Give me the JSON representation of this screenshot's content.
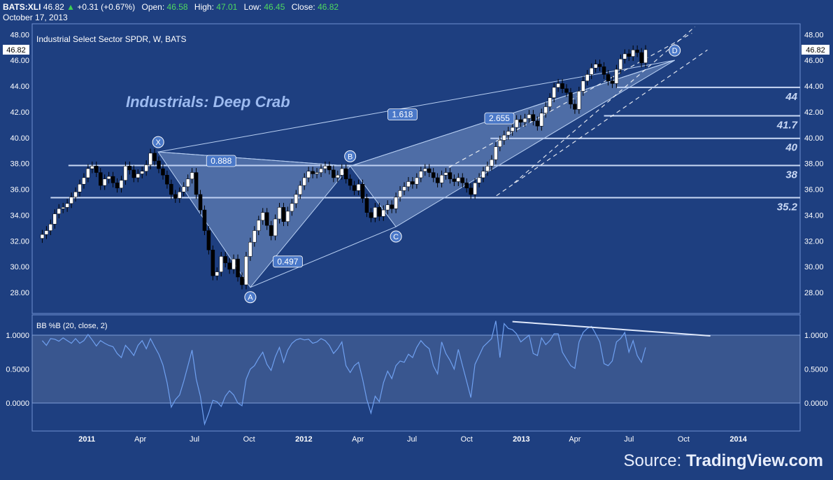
{
  "header": {
    "symbol": "BATS:XLI",
    "last": "46.82",
    "change": "+0.31 (+0.67%)",
    "open_label": "Open:",
    "open": "46.58",
    "high_label": "High:",
    "high": "47.01",
    "low_label": "Low:",
    "low": "46.45",
    "close_label": "Close:",
    "close": "46.82",
    "date": "October 17, 2013"
  },
  "source": {
    "prefix": "Source:",
    "brand": "TradingView.com"
  },
  "colors": {
    "background": "#1e3f80",
    "pattern_fill": "#a9c4ee",
    "accent": "#4a78c8",
    "up_candle": "#ffffff",
    "down_candle": "#000000"
  },
  "chart_data": [
    {
      "type": "candlestick",
      "title": "Industrial Select Sector SPDR, W, BATS",
      "annotation": "Industrials: Deep Crab",
      "x_ticks": [
        "2011",
        "Apr",
        "Jul",
        "Oct",
        "2012",
        "Apr",
        "Jul",
        "Oct",
        "2013",
        "Apr",
        "Jul",
        "Oct",
        "2014"
      ],
      "y_ticks": [
        "28.00",
        "30.00",
        "32.00",
        "34.00",
        "36.00",
        "38.00",
        "40.00",
        "42.00",
        "44.00",
        "46.00",
        "48.00"
      ],
      "ylim": [
        26.2,
        49.0
      ],
      "last_price_label": "46.82",
      "grid": false,
      "weekly_closes": [
        32.5,
        32.8,
        33.3,
        34.1,
        34.5,
        34.6,
        34.9,
        35.4,
        35.8,
        36.4,
        36.9,
        37.6,
        37.8,
        37.3,
        36.3,
        36.8,
        37.0,
        36.5,
        36.1,
        36.7,
        37.8,
        37.5,
        36.9,
        37.2,
        37.4,
        37.9,
        38.8,
        38.2,
        37.6,
        37.1,
        36.4,
        35.6,
        35.3,
        35.8,
        36.2,
        36.8,
        37.3,
        35.6,
        34.4,
        32.8,
        31.3,
        29.3,
        29.6,
        30.8,
        30.3,
        29.8,
        30.6,
        29.2,
        28.6,
        30.8,
        31.9,
        32.8,
        33.6,
        34.2,
        33.2,
        32.4,
        33.7,
        34.6,
        33.5,
        34.3,
        34.9,
        35.6,
        36.3,
        36.9,
        37.4,
        37.2,
        37.3,
        37.6,
        37.8,
        37.5,
        36.9,
        37.1,
        37.6,
        36.8,
        36.3,
        35.9,
        36.4,
        35.3,
        34.2,
        33.8,
        34.6,
        33.9,
        34.4,
        34.8,
        34.5,
        35.4,
        35.9,
        36.2,
        36.6,
        36.4,
        36.9,
        37.4,
        37.6,
        37.3,
        36.9,
        36.5,
        37.1,
        37.3,
        36.8,
        36.6,
        36.9,
        36.5,
        36.1,
        35.6,
        36.5,
        36.9,
        37.4,
        37.8,
        38.3,
        39.3,
        39.8,
        40.2,
        40.5,
        40.8,
        41.4,
        41.2,
        41.5,
        41.8,
        41.3,
        40.9,
        41.9,
        42.4,
        43.1,
        43.9,
        44.2,
        43.8,
        43.5,
        42.6,
        42.2,
        43.6,
        44.4,
        44.9,
        45.4,
        45.7,
        45.5,
        44.9,
        44.4,
        44.2,
        45.3,
        46.1,
        46.5,
        46.3,
        46.8,
        46.6,
        45.8,
        46.82
      ],
      "harmonic_pattern": {
        "name": "Deep Crab",
        "points": [
          {
            "label": "X",
            "date": "2011-05-01",
            "price": 38.9
          },
          {
            "label": "A",
            "date": "2011-10-03",
            "price": 28.4
          },
          {
            "label": "B",
            "date": "2012-03-19",
            "price": 37.8
          },
          {
            "label": "C",
            "date": "2012-06-04",
            "price": 33.1
          },
          {
            "label": "D",
            "date": "2013-09-16",
            "price": 46.0
          }
        ],
        "ratios": [
          "1.618",
          "0.888",
          "2.655",
          "0.497"
        ]
      },
      "horizontal_levels": [
        {
          "label": "44",
          "price": 43.9
        },
        {
          "label": "41.7",
          "price": 41.7
        },
        {
          "label": "40",
          "price": 39.95
        },
        {
          "label": "38",
          "price": 37.85
        },
        {
          "label": "35.2",
          "price": 35.35
        }
      ]
    },
    {
      "type": "line",
      "title": "BB %B (20, close, 2)",
      "y_ticks": [
        "0.0000",
        "0.5000",
        "1.0000"
      ],
      "ylim": [
        -0.37,
        1.25
      ],
      "band": [
        0,
        1
      ],
      "values": [
        0.92,
        0.85,
        0.95,
        0.94,
        0.91,
        0.96,
        0.92,
        0.88,
        0.95,
        0.88,
        0.92,
        1.01,
        0.93,
        0.84,
        0.92,
        0.88,
        0.85,
        0.83,
        0.73,
        0.67,
        0.85,
        0.78,
        0.7,
        0.85,
        0.92,
        0.8,
        0.95,
        0.83,
        0.72,
        0.56,
        0.3,
        -0.06,
        0.05,
        0.12,
        0.32,
        0.55,
        0.78,
        0.35,
        0.1,
        -0.31,
        -0.15,
        0.04,
        0.02,
        -0.05,
        0.1,
        0.18,
        0.12,
        0.0,
        -0.04,
        0.35,
        0.5,
        0.55,
        0.66,
        0.75,
        0.57,
        0.48,
        0.68,
        0.82,
        0.6,
        0.78,
        0.88,
        0.93,
        0.95,
        0.93,
        0.94,
        0.88,
        0.9,
        0.95,
        0.92,
        0.85,
        0.73,
        0.8,
        0.9,
        0.55,
        0.45,
        0.55,
        0.6,
        0.35,
        0.05,
        -0.15,
        0.1,
        0.02,
        0.3,
        0.47,
        0.36,
        0.55,
        0.62,
        0.6,
        0.72,
        0.67,
        0.82,
        0.92,
        0.85,
        0.8,
        0.55,
        0.43,
        0.9,
        0.73,
        0.63,
        0.5,
        0.79,
        0.55,
        0.32,
        0.08,
        0.57,
        0.7,
        0.83,
        0.89,
        0.95,
        1.21,
        0.67,
        1.17,
        1.1,
        1.08,
        1.02,
        0.9,
        0.95,
        1.0,
        0.73,
        0.7,
        0.96,
        0.86,
        0.92,
        1.02,
        1.02,
        0.75,
        0.65,
        0.55,
        0.51,
        0.9,
        1.04,
        1.1,
        1.13,
        1.02,
        0.9,
        0.58,
        0.55,
        0.62,
        0.9,
        0.95,
        1.04,
        0.75,
        0.92,
        0.7,
        0.6,
        0.82
      ]
    }
  ]
}
